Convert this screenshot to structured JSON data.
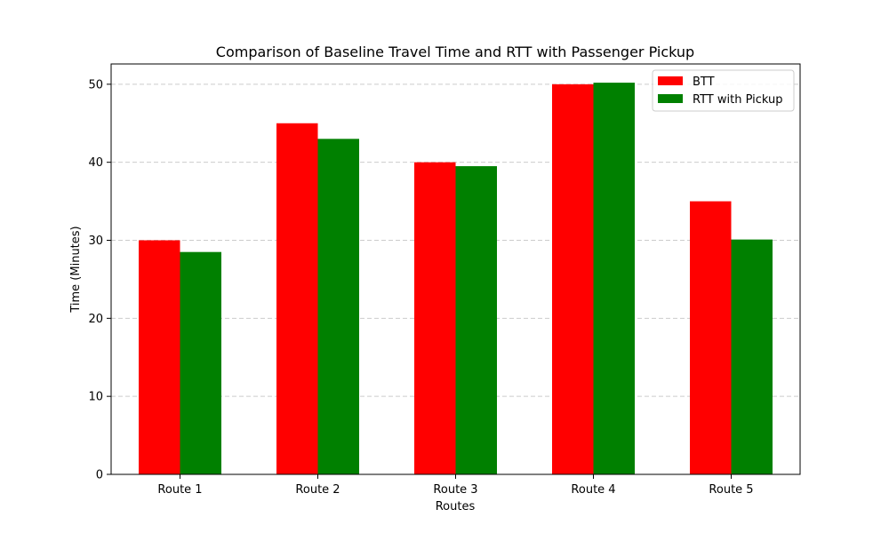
{
  "chart_data": {
    "type": "bar",
    "title": "Comparison of Baseline Travel Time and RTT with Passenger Pickup",
    "xlabel": "Routes",
    "ylabel": "Time (Minutes)",
    "categories": [
      "Route 1",
      "Route 2",
      "Route 3",
      "Route 4",
      "Route 5"
    ],
    "series": [
      {
        "name": "BTT",
        "color": "#ff0000",
        "values": [
          30,
          45,
          40,
          50,
          35
        ]
      },
      {
        "name": "RTT with Pickup",
        "color": "#008000",
        "values": [
          28.5,
          43,
          39.5,
          50.2,
          30.1
        ]
      }
    ],
    "ylim": [
      0,
      52.6
    ],
    "yticks": [
      0,
      10,
      20,
      30,
      40,
      50
    ],
    "grid": {
      "axis": "y",
      "style": "dashed",
      "color": "#cccccc"
    },
    "legend": {
      "position": "top-right"
    }
  }
}
